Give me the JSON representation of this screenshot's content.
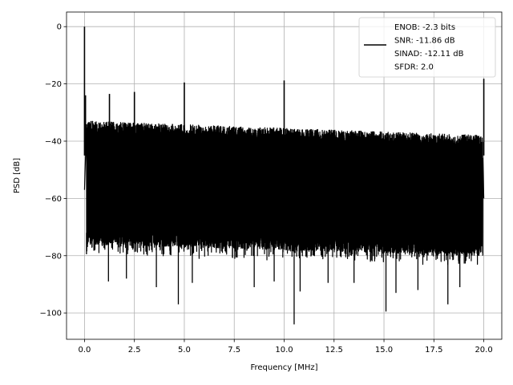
{
  "chart_data": {
    "type": "line",
    "xlabel": "Frequency [MHz]",
    "ylabel": "PSD [dB]",
    "xlim": [
      -0.9,
      20.9
    ],
    "ylim": [
      -109.2,
      5.1
    ],
    "xticks": [
      0.0,
      2.5,
      5.0,
      7.5,
      10.0,
      12.5,
      15.0,
      17.5,
      20.0
    ],
    "xtick_labels": [
      "0.0",
      "2.5",
      "5.0",
      "7.5",
      "10.0",
      "12.5",
      "15.0",
      "17.5",
      "20.0"
    ],
    "yticks": [
      0,
      -20,
      -40,
      -60,
      -80,
      -100
    ],
    "ytick_labels": [
      "0",
      "−20",
      "−40",
      "−60",
      "−80",
      "−100"
    ],
    "grid": true,
    "legend_position": "top-right",
    "series": [
      {
        "name": "ENOB: -2.3 bits\nSNR: -11.86 dB\nSINAD: -12.11 dB\nSFDR: 2.0",
        "color": "#000000",
        "noise_band": {
          "x_range": [
            0.1,
            19.95
          ],
          "upper_envelope_db": [
            -33,
            -38
          ],
          "lower_envelope_db": [
            -72,
            -76
          ],
          "deep_floor_db": -80
        },
        "spikes": [
          {
            "x": 0.0,
            "y": 0.0
          },
          {
            "x": 0.05,
            "y": -24
          },
          {
            "x": 1.25,
            "y": -23.5
          },
          {
            "x": 2.5,
            "y": -22.8
          },
          {
            "x": 5.0,
            "y": -19.5
          },
          {
            "x": 10.0,
            "y": -18.8
          },
          {
            "x": 20.0,
            "y": -18.2
          }
        ],
        "dips": [
          {
            "x": 0.1,
            "y": -79.5
          },
          {
            "x": 1.2,
            "y": -89
          },
          {
            "x": 2.1,
            "y": -88
          },
          {
            "x": 3.6,
            "y": -91
          },
          {
            "x": 4.7,
            "y": -97
          },
          {
            "x": 5.4,
            "y": -89.5
          },
          {
            "x": 8.5,
            "y": -91
          },
          {
            "x": 9.5,
            "y": -89
          },
          {
            "x": 10.5,
            "y": -104
          },
          {
            "x": 10.8,
            "y": -92.5
          },
          {
            "x": 12.2,
            "y": -89.5
          },
          {
            "x": 13.5,
            "y": -89.5
          },
          {
            "x": 15.1,
            "y": -99.5
          },
          {
            "x": 15.6,
            "y": -93
          },
          {
            "x": 16.7,
            "y": -92
          },
          {
            "x": 18.2,
            "y": -97
          },
          {
            "x": 18.8,
            "y": -91
          }
        ]
      }
    ]
  }
}
